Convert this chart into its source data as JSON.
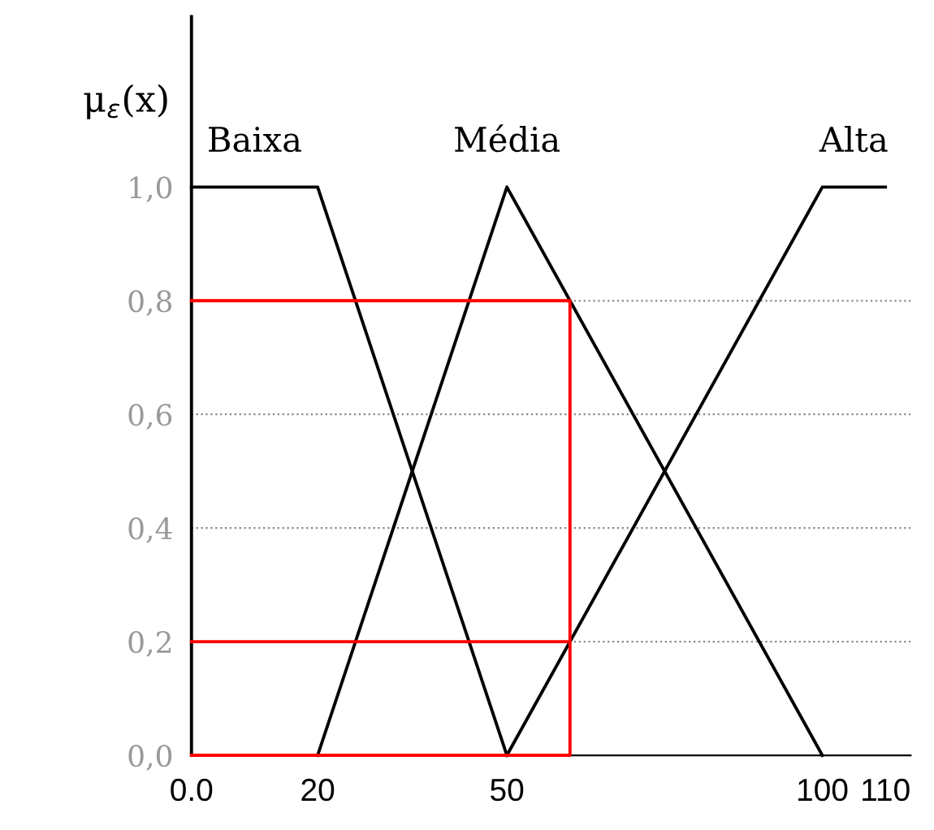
{
  "chart_data": {
    "type": "line",
    "ylabel": "μ$_{ε}$(x)",
    "series": [
      {
        "name": "Baixa",
        "color": "#000000",
        "x": [
          0,
          20,
          50
        ],
        "values": [
          1,
          1,
          0
        ]
      },
      {
        "name": "Média",
        "color": "#000000",
        "x": [
          20,
          50,
          100
        ],
        "values": [
          0,
          1,
          0
        ]
      },
      {
        "name": "Alta",
        "color": "#000000",
        "x": [
          50,
          100,
          110
        ],
        "values": [
          0,
          1,
          1
        ]
      },
      {
        "color": "#ff0000",
        "x": [
          0,
          60,
          60,
          0,
          null,
          0,
          60
        ],
        "values": [
          0.8,
          0.8,
          0,
          0,
          null,
          0.2,
          0.2
        ]
      }
    ],
    "xlim": [
      0,
      114
    ],
    "xticks": [
      {
        "value": 0,
        "label": "0.0"
      },
      20,
      50,
      100,
      110
    ],
    "ylim": [
      0,
      1.3
    ],
    "yticks": [
      {
        "value": 0,
        "label": "0,0"
      },
      {
        "value": 0.2,
        "label": "0,2"
      },
      {
        "value": 0.4,
        "label": "0,4"
      },
      {
        "value": 0.6,
        "label": "0,6"
      },
      {
        "value": 0.8,
        "label": "0,8"
      },
      {
        "value": 1,
        "label": "1,0"
      }
    ],
    "ref_lines": [
      {
        "axis": "y",
        "value": 0.2,
        "color": "#888888",
        "line_style": "dotted"
      },
      {
        "axis": "y",
        "value": 0.4,
        "color": "#888888",
        "line_style": "dotted"
      },
      {
        "axis": "y",
        "value": 0.6,
        "color": "#888888",
        "line_style": "dotted"
      },
      {
        "axis": "y",
        "value": 0.8,
        "color": "#888888",
        "line_style": "dotted"
      }
    ],
    "grid": false,
    "legend": false,
    "marker": "none",
    "line_style": "solid"
  }
}
